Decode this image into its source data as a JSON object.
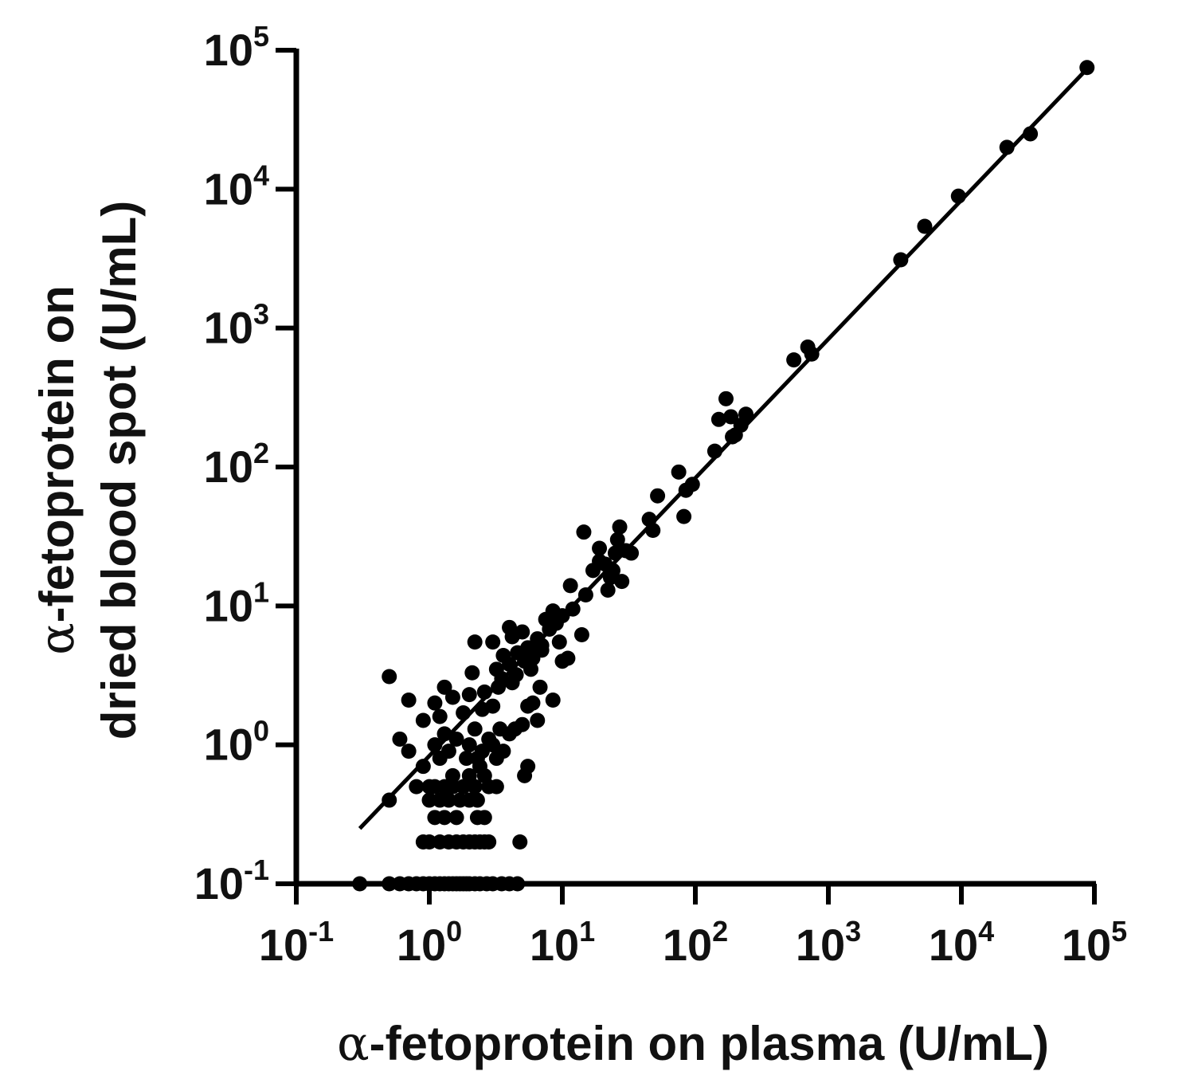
{
  "chart_data": {
    "type": "scatter",
    "xscale": "log",
    "yscale": "log",
    "xlim": [
      0.1,
      100000
    ],
    "ylim": [
      0.1,
      100000
    ],
    "xticks": [
      0.1,
      1,
      10,
      100,
      1000,
      10000,
      100000
    ],
    "yticks": [
      0.1,
      1,
      10,
      100,
      1000,
      10000,
      100000
    ],
    "tick_base": "10",
    "tick_exponents": [
      "-1",
      "0",
      "1",
      "2",
      "3",
      "4",
      "5"
    ],
    "xlabel": {
      "symbol": "α",
      "text": "-fetoprotein on plasma (U/mL)"
    },
    "ylabel": {
      "line1_symbol": "α",
      "line1_text": "-fetoprotein on",
      "line2": "dried blood spot (U/mL)"
    },
    "grid": false,
    "legend": "none",
    "marker_color": "#000000",
    "line_color": "#000000",
    "fit_line": {
      "x": [
        0.3,
        90000
      ],
      "y": [
        0.25,
        75000
      ]
    },
    "points": [
      [
        0.3,
        0.1
      ],
      [
        0.5,
        0.1
      ],
      [
        0.6,
        0.1
      ],
      [
        0.7,
        0.1
      ],
      [
        0.8,
        0.1
      ],
      [
        0.9,
        0.1
      ],
      [
        1.0,
        0.1
      ],
      [
        1.1,
        0.1
      ],
      [
        1.2,
        0.1
      ],
      [
        1.3,
        0.1
      ],
      [
        1.4,
        0.1
      ],
      [
        1.5,
        0.1
      ],
      [
        1.6,
        0.1
      ],
      [
        1.7,
        0.1
      ],
      [
        1.8,
        0.1
      ],
      [
        1.9,
        0.1
      ],
      [
        2.0,
        0.1
      ],
      [
        2.2,
        0.1
      ],
      [
        2.4,
        0.1
      ],
      [
        2.7,
        0.1
      ],
      [
        3.0,
        0.1
      ],
      [
        3.5,
        0.1
      ],
      [
        4.0,
        0.1
      ],
      [
        4.6,
        0.1
      ],
      [
        0.9,
        0.2
      ],
      [
        1.0,
        0.2
      ],
      [
        1.2,
        0.2
      ],
      [
        1.4,
        0.2
      ],
      [
        1.6,
        0.2
      ],
      [
        1.8,
        0.2
      ],
      [
        2.0,
        0.2
      ],
      [
        2.2,
        0.2
      ],
      [
        2.4,
        0.2
      ],
      [
        2.6,
        0.2
      ],
      [
        2.8,
        0.2
      ],
      [
        4.8,
        0.2
      ],
      [
        1.1,
        0.3
      ],
      [
        1.3,
        0.3
      ],
      [
        1.6,
        0.3
      ],
      [
        2.3,
        0.3
      ],
      [
        2.6,
        0.3
      ],
      [
        0.5,
        0.4
      ],
      [
        1.0,
        0.4
      ],
      [
        1.2,
        0.4
      ],
      [
        1.4,
        0.4
      ],
      [
        1.7,
        0.4
      ],
      [
        2.0,
        0.4
      ],
      [
        2.3,
        0.4
      ],
      [
        0.8,
        0.5
      ],
      [
        1.0,
        0.5
      ],
      [
        1.1,
        0.5
      ],
      [
        1.3,
        0.5
      ],
      [
        1.5,
        0.5
      ],
      [
        1.8,
        0.5
      ],
      [
        2.2,
        0.5
      ],
      [
        2.8,
        0.5
      ],
      [
        3.2,
        0.5
      ],
      [
        1.5,
        0.6
      ],
      [
        2.0,
        0.6
      ],
      [
        2.6,
        0.6
      ],
      [
        5.2,
        0.6
      ],
      [
        5.5,
        0.7
      ],
      [
        2.4,
        0.7
      ],
      [
        0.9,
        0.7
      ],
      [
        1.2,
        0.8
      ],
      [
        1.9,
        0.8
      ],
      [
        2.3,
        0.8
      ],
      [
        3.2,
        0.8
      ],
      [
        0.7,
        0.9
      ],
      [
        1.4,
        0.9
      ],
      [
        2.5,
        0.9
      ],
      [
        3.6,
        0.9
      ],
      [
        1.1,
        1.0
      ],
      [
        2.0,
        1.0
      ],
      [
        3.0,
        1.0
      ],
      [
        0.6,
        1.1
      ],
      [
        1.6,
        1.1
      ],
      [
        2.8,
        1.1
      ],
      [
        4.0,
        1.2
      ],
      [
        1.3,
        1.2
      ],
      [
        2.2,
        1.3
      ],
      [
        3.4,
        1.3
      ],
      [
        4.4,
        1.3
      ],
      [
        5.0,
        1.4
      ],
      [
        6.5,
        1.5
      ],
      [
        0.9,
        1.5
      ],
      [
        1.2,
        1.6
      ],
      [
        1.8,
        1.7
      ],
      [
        2.5,
        1.8
      ],
      [
        3.0,
        1.9
      ],
      [
        5.5,
        1.9
      ],
      [
        6.0,
        2.0
      ],
      [
        8.5,
        2.1
      ],
      [
        0.7,
        2.1
      ],
      [
        1.1,
        2.0
      ],
      [
        1.5,
        2.2
      ],
      [
        2.0,
        2.3
      ],
      [
        2.6,
        2.4
      ],
      [
        3.3,
        2.6
      ],
      [
        4.2,
        2.8
      ],
      [
        1.3,
        2.6
      ],
      [
        3.5,
        3.0
      ],
      [
        4.5,
        3.2
      ],
      [
        0.5,
        3.1
      ],
      [
        2.1,
        3.3
      ],
      [
        3.2,
        3.5
      ],
      [
        4.0,
        3.8
      ],
      [
        5.2,
        4.0
      ],
      [
        6.0,
        4.2
      ],
      [
        3.6,
        4.4
      ],
      [
        4.6,
        4.6
      ],
      [
        5.5,
        5.0
      ],
      [
        7.0,
        5.2
      ],
      [
        2.2,
        5.5
      ],
      [
        3.0,
        5.5
      ],
      [
        6.5,
        5.8
      ],
      [
        4.2,
        6.0
      ],
      [
        5.0,
        6.5
      ],
      [
        8.0,
        6.8
      ],
      [
        4.0,
        7.0
      ],
      [
        9.0,
        7.5
      ],
      [
        7.5,
        8.0
      ],
      [
        10.0,
        8.5
      ],
      [
        8.5,
        9.2
      ],
      [
        12.0,
        9.5
      ],
      [
        11.0,
        4.2
      ],
      [
        14.0,
        6.2
      ],
      [
        10.0,
        4.0
      ],
      [
        9.5,
        5.5
      ],
      [
        7.0,
        4.8
      ],
      [
        5.8,
        3.5
      ],
      [
        6.8,
        2.6
      ],
      [
        11.5,
        14.0
      ],
      [
        15.0,
        12.0
      ],
      [
        17.0,
        18.0
      ],
      [
        19.0,
        26.0
      ],
      [
        21.0,
        20.0
      ],
      [
        23.0,
        16.0
      ],
      [
        25.0,
        24.0
      ],
      [
        28.0,
        15.0
      ],
      [
        22.0,
        13.0
      ],
      [
        26.0,
        30.0
      ],
      [
        14.5,
        34.0
      ],
      [
        30.0,
        25.0
      ],
      [
        33.0,
        24.0
      ],
      [
        27.0,
        37.0
      ],
      [
        19.0,
        21.0
      ],
      [
        24.0,
        18.0
      ],
      [
        45.0,
        42.0
      ],
      [
        48.0,
        35.0
      ],
      [
        52.0,
        62.0
      ],
      [
        75.0,
        92.0
      ],
      [
        82.0,
        44.0
      ],
      [
        85.0,
        68.0
      ],
      [
        95.0,
        75.0
      ],
      [
        140.0,
        130.0
      ],
      [
        150.0,
        220.0
      ],
      [
        170.0,
        310.0
      ],
      [
        185.0,
        230.0
      ],
      [
        190.0,
        165.0
      ],
      [
        200.0,
        170.0
      ],
      [
        220.0,
        200.0
      ],
      [
        240.0,
        240.0
      ],
      [
        550.0,
        590.0
      ],
      [
        700.0,
        730.0
      ],
      [
        750.0,
        650.0
      ],
      [
        3500.0,
        3100.0
      ],
      [
        5300.0,
        5400.0
      ],
      [
        9500.0,
        8900.0
      ],
      [
        22000.0,
        20000.0
      ],
      [
        33000.0,
        25000.0
      ],
      [
        88000.0,
        75000.0
      ]
    ]
  }
}
